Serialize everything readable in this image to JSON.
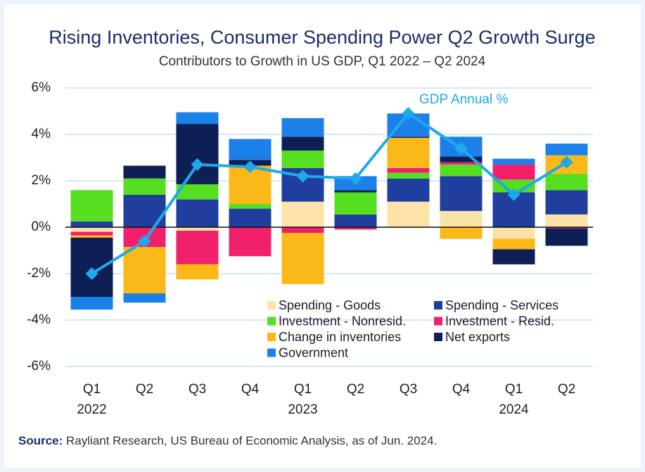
{
  "chart_data": {
    "type": "bar",
    "title": "Rising Inventories, Consumer Spending Power Q2 Growth Surge",
    "subtitle": "Contributors to Growth in US GDP, Q1 2022 – Q2 2024",
    "categories": [
      "Q1",
      "Q2",
      "Q3",
      "Q4",
      "Q1",
      "Q2",
      "Q3",
      "Q4",
      "Q1",
      "Q2"
    ],
    "years": [
      "2022",
      null,
      null,
      null,
      "2023",
      null,
      null,
      null,
      "2024",
      null
    ],
    "stacked": true,
    "series": [
      {
        "name": "Spending - Goods",
        "color": "#fde3a8",
        "values": [
          -0.2,
          0,
          -0.15,
          0,
          1.1,
          0,
          1.1,
          0.7,
          -0.5,
          0.55
        ]
      },
      {
        "name": "Spending - Services",
        "color": "#1f3e9e",
        "values": [
          0.25,
          1.4,
          1.2,
          0.8,
          1.45,
          0.55,
          1.0,
          1.5,
          1.5,
          1.05
        ]
      },
      {
        "name": "Investment - Nonresid.",
        "color": "#56df20",
        "values": [
          1.35,
          0.7,
          0.65,
          0.2,
          0.75,
          0.95,
          0.25,
          0.5,
          0.55,
          0.7
        ]
      },
      {
        "name": "Investment - Resid.",
        "color": "#f0206d",
        "values": [
          -0.15,
          -0.85,
          -1.45,
          -1.25,
          -0.25,
          -0.1,
          0.2,
          0.1,
          0.65,
          -0.05
        ]
      },
      {
        "name": "Change in inventories",
        "color": "#fbb819",
        "values": [
          -0.1,
          -2.0,
          -0.65,
          1.65,
          -2.2,
          0,
          1.3,
          -0.5,
          -0.45,
          0.8
        ]
      },
      {
        "name": "Net exports",
        "color": "#0e1f56",
        "values": [
          -2.55,
          0.55,
          2.6,
          0.25,
          0.6,
          0.1,
          0.05,
          0.25,
          -0.65,
          -0.75
        ]
      },
      {
        "name": "Government",
        "color": "#1c80e9",
        "values": [
          -0.55,
          -0.4,
          0.5,
          0.9,
          0.8,
          0.6,
          1.0,
          0.85,
          0.25,
          0.5
        ]
      }
    ],
    "line_series": {
      "name": "GDP Annual %",
      "color": "#1fa9e8",
      "values": [
        -2.0,
        -0.6,
        2.7,
        2.6,
        2.2,
        2.1,
        4.9,
        3.4,
        1.4,
        2.8
      ]
    },
    "ylim": [
      -6,
      6
    ],
    "yticks": [
      {
        "value": -6,
        "label": "-6%"
      },
      {
        "value": -4,
        "label": "-4%"
      },
      {
        "value": -2,
        "label": "-2%"
      },
      {
        "value": 0,
        "label": "0%"
      },
      {
        "value": 2,
        "label": "2%"
      },
      {
        "value": 4,
        "label": "4%"
      },
      {
        "value": 6,
        "label": "6%"
      }
    ],
    "grid": true,
    "legend_position": "lower right",
    "source": {
      "label": "Source:",
      "text": "Rayliant Research, US Bureau of Economic Analysis, as of Jun. 2024."
    }
  }
}
